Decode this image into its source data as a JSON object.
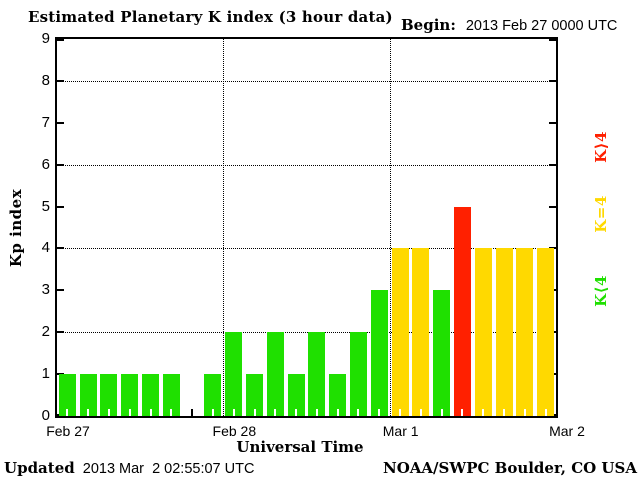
{
  "title": "Estimated Planetary K index (3 hour data)",
  "begin": {
    "label": "Begin:",
    "value": "2013 Feb 27 0000 UTC"
  },
  "chart_data": {
    "type": "bar",
    "title": "Estimated Planetary K index (3 hour data)",
    "xlabel": "Universal Time",
    "ylabel": "Kp index",
    "ylim": [
      0,
      9
    ],
    "yticks": [
      0,
      1,
      2,
      3,
      4,
      5,
      6,
      7,
      8,
      9
    ],
    "gridlines_y": [
      2,
      4,
      6,
      8
    ],
    "grid": "dotted",
    "hours_per_bar": 3,
    "threshold": 4,
    "x_day_labels": [
      "Feb 27",
      "Feb 28",
      "Mar 1",
      "Mar 2"
    ],
    "x_label_slots": [
      0,
      8,
      16,
      24
    ],
    "day_boundary_slots": [
      8,
      16
    ],
    "values": [
      1,
      1,
      1,
      1,
      1,
      1,
      0,
      1,
      2,
      1,
      2,
      1,
      2,
      1,
      2,
      3,
      4,
      4,
      3,
      5,
      4,
      4,
      4,
      4
    ],
    "series_note": "Kp per 3-hour interval starting 2013 Feb 27 0000 UTC; 0 = no bar drawn"
  },
  "legend": [
    {
      "label": "K⟩4",
      "color": "#ff2000",
      "meaning": "K>4"
    },
    {
      "label": "K=4",
      "color": "#ffd900",
      "meaning": "K=4"
    },
    {
      "label": "K⟨4",
      "color": "#1fe000",
      "meaning": "K<4"
    }
  ],
  "colors": {
    "green": "#1fe000",
    "yellow": "#ffd900",
    "red": "#ff2000",
    "axis": "#000000",
    "background": "#ffffff"
  },
  "footer": {
    "updated_label": "Updated",
    "updated_value": "2013 Mar  2 02:55:07 UTC",
    "credit": "NOAA/SWPC Boulder, CO USA"
  }
}
